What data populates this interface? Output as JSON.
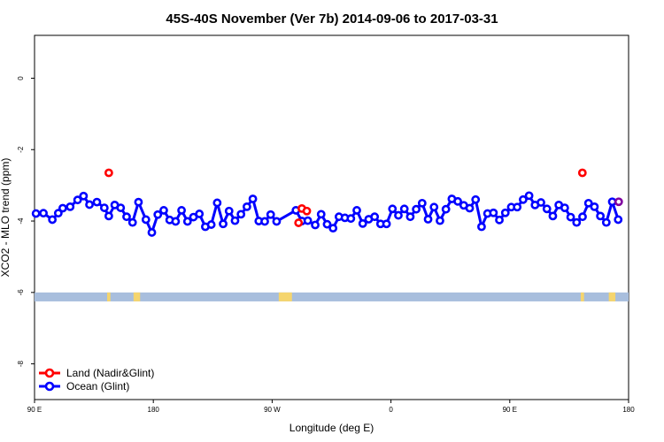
{
  "chart_data": {
    "type": "scatter",
    "title": "45S-40S November (Ver 7b)   2014-09-06 to 2017-03-31",
    "xlabel": "Longitude (deg E)",
    "ylabel": "XCO2 - MLO trend (ppm)",
    "xlim": [
      90,
      450
    ],
    "ylim": [
      -9,
      1.2
    ],
    "x_ticks": [
      {
        "value": 90,
        "label": "90 E"
      },
      {
        "value": 162,
        "label": "180"
      },
      {
        "value": 234,
        "label": "90 W"
      },
      {
        "value": 306,
        "label": "0"
      },
      {
        "value": 378,
        "label": "90 E"
      },
      {
        "value": 450,
        "label": "180"
      }
    ],
    "y_ticks": [
      {
        "value": 0,
        "label": "0"
      },
      {
        "value": -2,
        "label": "-2"
      },
      {
        "value": -4,
        "label": "-4"
      },
      {
        "value": -6,
        "label": "-6"
      },
      {
        "value": -8,
        "label": "-8"
      }
    ],
    "colors": {
      "land": "#ff0000",
      "ocean": "#0000ff",
      "land_ocean_overlap": "#8000a0",
      "ocean_band": "#a8bedd",
      "land_patch": "#f5d56e"
    },
    "legend": {
      "position": "bottom-left",
      "entries": [
        "Land (Nadir&Glint)",
        "Ocean (Glint)"
      ]
    },
    "series": [
      {
        "name": "Land (Nadir&Glint)",
        "color": "#ff0000",
        "points": [
          [
            135,
            -2.65
          ],
          [
            250,
            -4.05
          ],
          [
            252,
            -3.65
          ],
          [
            255,
            -3.72
          ],
          [
            422,
            -2.65
          ],
          [
            444,
            -3.46
          ]
        ]
      },
      {
        "name": "Ocean (Glint)",
        "color": "#0000ff",
        "points": [
          [
            90.9,
            -3.79
          ],
          [
            95.4,
            -3.78
          ],
          [
            100.8,
            -3.96
          ],
          [
            104.4,
            -3.78
          ],
          [
            107.1,
            -3.64
          ],
          [
            111.6,
            -3.6
          ],
          [
            116.1,
            -3.41
          ],
          [
            119.7,
            -3.3
          ],
          [
            123.3,
            -3.54
          ],
          [
            127.8,
            -3.47
          ],
          [
            132.3,
            -3.63
          ],
          [
            135,
            -3.86
          ],
          [
            138.6,
            -3.55
          ],
          [
            142.2,
            -3.63
          ],
          [
            145.8,
            -3.88
          ],
          [
            149.4,
            -4.04
          ],
          [
            153,
            -3.47
          ],
          [
            157.5,
            -3.96
          ],
          [
            161.1,
            -4.32
          ],
          [
            164.7,
            -3.82
          ],
          [
            168.3,
            -3.7
          ],
          [
            171.9,
            -3.97
          ],
          [
            175.5,
            -4.01
          ],
          [
            179.1,
            -3.7
          ],
          [
            182.7,
            -4.01
          ],
          [
            186.3,
            -3.89
          ],
          [
            189.9,
            -3.8
          ],
          [
            193.5,
            -4.16
          ],
          [
            197.1,
            -4.1
          ],
          [
            200.7,
            -3.49
          ],
          [
            204.3,
            -4.08
          ],
          [
            207.9,
            -3.72
          ],
          [
            211.5,
            -3.99
          ],
          [
            215.1,
            -3.81
          ],
          [
            218.7,
            -3.6
          ],
          [
            222.3,
            -3.38
          ],
          [
            225.9,
            -4.0
          ],
          [
            229.5,
            -4.01
          ],
          [
            233.1,
            -3.82
          ],
          [
            236.7,
            -4.01
          ],
          [
            248.4,
            -3.7
          ],
          [
            252,
            -4.0
          ],
          [
            255.6,
            -3.99
          ],
          [
            260.1,
            -4.11
          ],
          [
            263.7,
            -3.81
          ],
          [
            267.3,
            -4.09
          ],
          [
            270.9,
            -4.2
          ],
          [
            274.5,
            -3.88
          ],
          [
            278.1,
            -3.91
          ],
          [
            281.7,
            -3.93
          ],
          [
            285.3,
            -3.7
          ],
          [
            288.9,
            -4.07
          ],
          [
            292.5,
            -3.95
          ],
          [
            296.1,
            -3.88
          ],
          [
            299.7,
            -4.08
          ],
          [
            303.3,
            -4.08
          ],
          [
            306.9,
            -3.66
          ],
          [
            310.5,
            -3.84
          ],
          [
            314.1,
            -3.66
          ],
          [
            317.7,
            -3.88
          ],
          [
            321.3,
            -3.67
          ],
          [
            324.9,
            -3.5
          ],
          [
            328.5,
            -3.95
          ],
          [
            332.1,
            -3.61
          ],
          [
            335.7,
            -3.99
          ],
          [
            339.3,
            -3.67
          ],
          [
            342.9,
            -3.38
          ],
          [
            346.5,
            -3.45
          ],
          [
            350.1,
            -3.56
          ],
          [
            353.7,
            -3.64
          ],
          [
            357.3,
            -3.4
          ],
          [
            360.9,
            -4.16
          ],
          [
            364.5,
            -3.79
          ],
          [
            368.1,
            -3.77
          ],
          [
            371.7,
            -3.97
          ],
          [
            375.3,
            -3.77
          ],
          [
            378.9,
            -3.61
          ],
          [
            382.5,
            -3.61
          ],
          [
            386.1,
            -3.4
          ],
          [
            389.7,
            -3.29
          ],
          [
            393.3,
            -3.55
          ],
          [
            396.9,
            -3.48
          ],
          [
            400.5,
            -3.66
          ],
          [
            404.1,
            -3.86
          ],
          [
            407.7,
            -3.55
          ],
          [
            411.3,
            -3.63
          ],
          [
            414.9,
            -3.89
          ],
          [
            418.5,
            -4.04
          ],
          [
            422.1,
            -3.88
          ],
          [
            425.7,
            -3.5
          ],
          [
            429.3,
            -3.6
          ],
          [
            432.9,
            -3.86
          ],
          [
            436.5,
            -4.04
          ],
          [
            440.1,
            -3.46
          ],
          [
            443.7,
            -3.96
          ]
        ]
      }
    ],
    "land_patches": [
      {
        "xmin": 134,
        "xmax": 136
      },
      {
        "xmin": 150,
        "xmax": 154
      },
      {
        "xmin": 238,
        "xmax": 246
      },
      {
        "xmin": 421,
        "xmax": 423
      },
      {
        "xmin": 438,
        "xmax": 442
      }
    ],
    "band": {
      "ymin": -6.25,
      "ymax": -6.0
    }
  }
}
